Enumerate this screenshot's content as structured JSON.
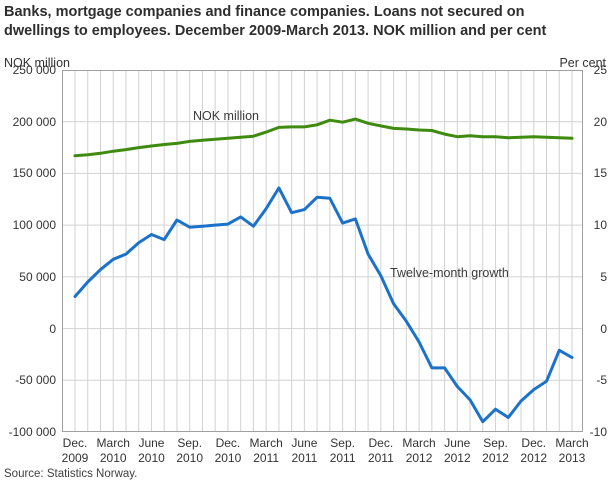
{
  "title": {
    "line1": "Banks, mortgage companies and finance companies. Loans not secured on",
    "line2": "dwellings to employees. December 2009-March 2013. NOK million and per cent"
  },
  "axes": {
    "left_unit": "NOK million",
    "right_unit": "Per cent",
    "left_ticks": [
      "250 000",
      "200 000",
      "150 000",
      "100 000",
      "50 000",
      "0",
      "-50 000",
      "-100 000"
    ],
    "right_ticks": [
      "25",
      "20",
      "15",
      "10",
      "5",
      "0",
      "-5",
      "-10"
    ],
    "left_range": [
      -100000,
      250000
    ],
    "right_range": [
      -10,
      25
    ]
  },
  "series_labels": {
    "nok": "NOK million",
    "growth": "Twelve-month growth"
  },
  "colors": {
    "nok_line": "#3e8b10",
    "growth_line": "#1c72c8",
    "gridline": "#d2d2d2",
    "plot_border": "#a0a0a0"
  },
  "source": "Source: Statistics Norway.",
  "chart_data": {
    "type": "line",
    "title": "Banks, mortgage companies and finance companies. Loans not secured on dwellings to employees. December 2009-March 2013. NOK million and per cent",
    "x_months": [
      "Dec 2009",
      "Jan 2010",
      "Feb 2010",
      "Mar 2010",
      "Apr 2010",
      "May 2010",
      "Jun 2010",
      "Jul 2010",
      "Aug 2010",
      "Sep 2010",
      "Oct 2010",
      "Nov 2010",
      "Dec 2010",
      "Jan 2011",
      "Feb 2011",
      "Mar 2011",
      "Apr 2011",
      "May 2011",
      "Jun 2011",
      "Jul 2011",
      "Aug 2011",
      "Sep 2011",
      "Oct 2011",
      "Nov 2011",
      "Dec 2011",
      "Jan 2012",
      "Feb 2012",
      "Mar 2012",
      "Apr 2012",
      "May 2012",
      "Jun 2012",
      "Jul 2012",
      "Aug 2012",
      "Sep 2012",
      "Oct 2012",
      "Nov 2012",
      "Dec 2012",
      "Jan 2013",
      "Feb 2013",
      "Mar 2013"
    ],
    "x_tick_labels": [
      {
        "month": "Dec.",
        "year": "2009",
        "index": 0
      },
      {
        "month": "March",
        "year": "2010",
        "index": 3
      },
      {
        "month": "June",
        "year": "2010",
        "index": 6
      },
      {
        "month": "Sep.",
        "year": "2010",
        "index": 9
      },
      {
        "month": "Dec.",
        "year": "2010",
        "index": 12
      },
      {
        "month": "March",
        "year": "2011",
        "index": 15
      },
      {
        "month": "June",
        "year": "2011",
        "index": 18
      },
      {
        "month": "Sep.",
        "year": "2011",
        "index": 21
      },
      {
        "month": "Dec.",
        "year": "2011",
        "index": 24
      },
      {
        "month": "March",
        "year": "2012",
        "index": 27
      },
      {
        "month": "June",
        "year": "2012",
        "index": 30
      },
      {
        "month": "Sep.",
        "year": "2012",
        "index": 33
      },
      {
        "month": "Dec.",
        "year": "2012",
        "index": 36
      },
      {
        "month": "March",
        "year": "2013",
        "index": 39
      }
    ],
    "series": [
      {
        "name": "NOK million",
        "axis": "left",
        "unit": "NOK million",
        "values": [
          167000,
          168000,
          169500,
          171500,
          173000,
          175000,
          176500,
          178000,
          179000,
          181000,
          182000,
          183000,
          184000,
          185000,
          186000,
          190000,
          194500,
          195000,
          195000,
          197000,
          201500,
          199500,
          202500,
          198500,
          196000,
          193500,
          193000,
          192000,
          191500,
          188000,
          185500,
          186500,
          185500,
          185500,
          184500,
          185000,
          185500,
          185000,
          184500,
          184000
        ]
      },
      {
        "name": "Twelve-month growth",
        "axis": "right",
        "unit": "per cent",
        "values": [
          3.1,
          4.5,
          5.7,
          6.7,
          7.2,
          8.3,
          9.1,
          8.6,
          10.5,
          9.8,
          9.9,
          10.0,
          10.1,
          10.8,
          9.9,
          11.6,
          13.6,
          11.2,
          11.5,
          12.7,
          12.6,
          10.2,
          10.6,
          7.2,
          5.1,
          2.4,
          0.7,
          -1.3,
          -3.8,
          -3.8,
          -5.6,
          -6.9,
          -9.0,
          -7.8,
          -8.6,
          -7.0,
          -5.9,
          -5.1,
          -2.1,
          -2.8
        ]
      }
    ],
    "left_ylim": [
      -100000,
      250000
    ],
    "right_ylim": [
      -10,
      25
    ],
    "grid": true,
    "legend_position": "inline-annotations"
  }
}
